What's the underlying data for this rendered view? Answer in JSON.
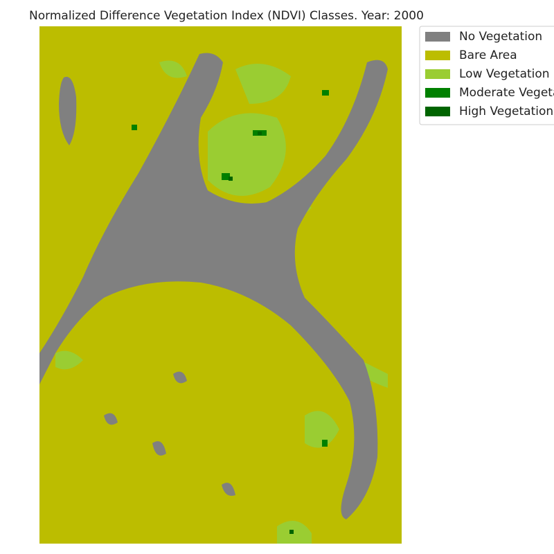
{
  "title": "Normalized Difference Vegetation Index (NDVI) Classes. Year: 2000",
  "legend": {
    "items": [
      {
        "label": "No Vegetation",
        "color": "#808080"
      },
      {
        "label": "Bare Area",
        "color": "#bcbd00"
      },
      {
        "label": "Low Vegetation",
        "color": "#9acd32"
      },
      {
        "label": "Moderate Vegetation",
        "color": "#008000"
      },
      {
        "label": "High Vegetation",
        "color": "#006400"
      }
    ]
  }
}
